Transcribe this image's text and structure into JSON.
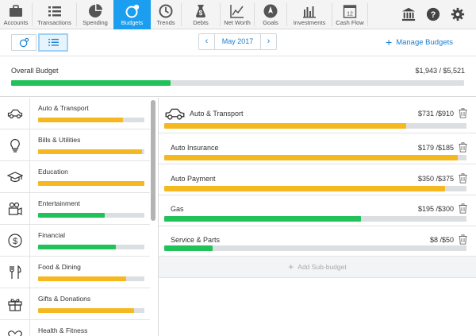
{
  "nav": {
    "items": [
      {
        "label": "Accounts",
        "icon": "briefcase-icon"
      },
      {
        "label": "Transactions",
        "icon": "list-icon"
      },
      {
        "label": "Spending",
        "icon": "pie-chart-icon"
      },
      {
        "label": "Budgets",
        "icon": "budgets-icon"
      },
      {
        "label": "Trends",
        "icon": "clock-icon"
      },
      {
        "label": "Debts",
        "icon": "money-bag-icon"
      },
      {
        "label": "Net Worth",
        "icon": "line-chart-icon"
      },
      {
        "label": "Goals",
        "icon": "compass-icon"
      },
      {
        "label": "Investments",
        "icon": "bar-chart-icon"
      },
      {
        "label": "Cash Flow",
        "icon": "calendar-icon",
        "calendar_day": "12"
      }
    ],
    "active": "Budgets",
    "right_icons": [
      "bank-icon",
      "help-icon",
      "gear-icon"
    ]
  },
  "toolbar": {
    "month": "May 2017",
    "prev": "‹",
    "next": "›",
    "manage_label": "Manage Budgets",
    "manage_plus": "+"
  },
  "overall": {
    "title": "Overall Budget",
    "amount": "$1,943 / $5,521",
    "progress": 0.352,
    "color": "green"
  },
  "categories": [
    {
      "name": "Auto & Transport",
      "icon": "car-icon",
      "progress": 0.8,
      "color": "yellow"
    },
    {
      "name": "Bills & Utilities",
      "icon": "lightbulb-icon",
      "progress": 0.98,
      "color": "yellow"
    },
    {
      "name": "Education",
      "icon": "graduation-cap-icon",
      "progress": 1.0,
      "color": "yellow"
    },
    {
      "name": "Entertainment",
      "icon": "video-camera-icon",
      "progress": 0.63,
      "color": "green"
    },
    {
      "name": "Financial",
      "icon": "dollar-circle-icon",
      "progress": 0.73,
      "color": "green"
    },
    {
      "name": "Food & Dining",
      "icon": "utensils-icon",
      "progress": 0.83,
      "color": "yellow"
    },
    {
      "name": "Gifts & Donations",
      "icon": "gift-icon",
      "progress": 0.9,
      "color": "yellow"
    },
    {
      "name": "Health & Fitness",
      "icon": "heart-icon",
      "progress": 0.0,
      "color": "green"
    }
  ],
  "detail": {
    "header": {
      "name": "Auto & Transport",
      "amount": "$731 /$910",
      "progress": 0.8,
      "color": "yellow"
    },
    "subbudgets": [
      {
        "name": "Auto Insurance",
        "amount": "$179 /$185",
        "progress": 0.97,
        "color": "yellow"
      },
      {
        "name": "Auto Payment",
        "amount": "$350 /$375",
        "progress": 0.93,
        "color": "yellow"
      },
      {
        "name": "Gas",
        "amount": "$195 /$300",
        "progress": 0.65,
        "color": "green"
      },
      {
        "name": "Service & Parts",
        "amount": "$8 /$50",
        "progress": 0.16,
        "color": "green"
      }
    ],
    "add_label": "Add Sub-budget",
    "add_plus": "+"
  }
}
